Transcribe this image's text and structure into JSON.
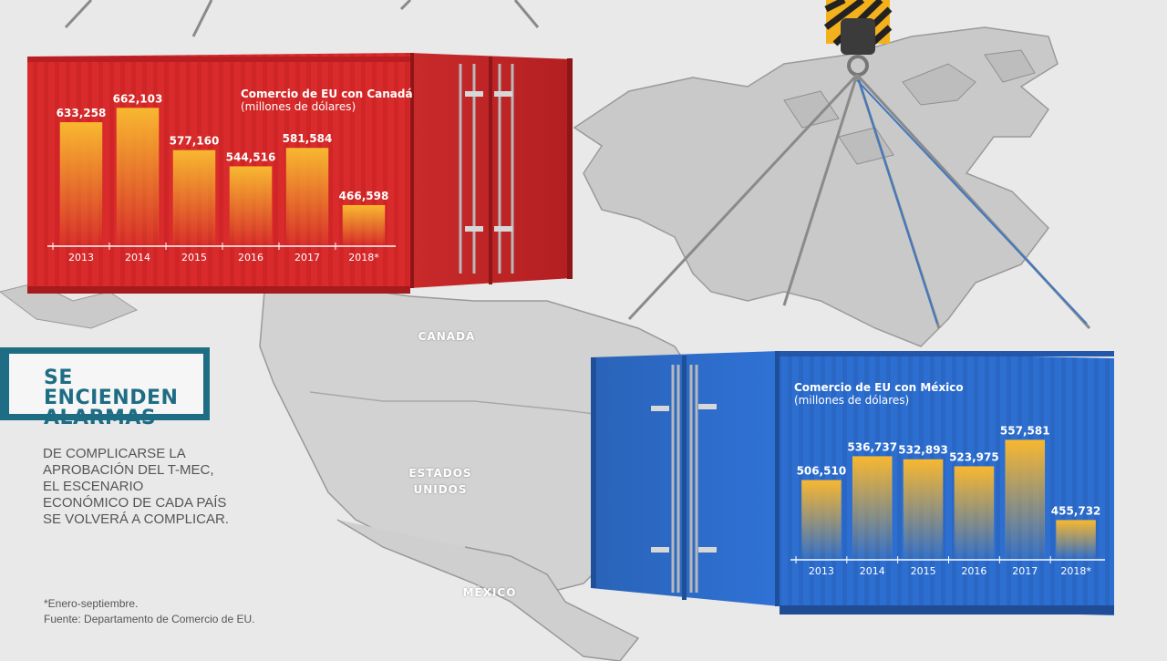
{
  "headline": "SE ENCIENDEN\nALARMAS",
  "description": "DE COMPLICARSE LA\nAPROBACIÓN DEL T-MEC,\nEL ESCENARIO\nECONÓMICO DE CADA PAÍS\nSE VOLVERÁ A COMPLICAR.",
  "footnote": "*Enero-septiembre.",
  "source": "Fuente: Departamento de Comercio de EU.",
  "map_labels": {
    "canada": "CANADÁ",
    "usa": "ESTADOS\nUNIDOS",
    "mexico": "MÉXICO"
  },
  "colors": {
    "red_container": "#d42727",
    "blue_container": "#2c6fd0",
    "bar_top": "#f7b531",
    "title_teal": "#1e6d85"
  },
  "chart_data": [
    {
      "type": "bar",
      "title": "Comercio de EU con Canadá",
      "subtitle": "(millones de dólares)",
      "categories": [
        "2013",
        "2014",
        "2015",
        "2016",
        "2017",
        "2018*"
      ],
      "values": [
        633258,
        662103,
        577160,
        544516,
        581584,
        466598
      ],
      "value_labels": [
        "633,258",
        "662,103",
        "577,160",
        "544,516",
        "581,584",
        "466,598"
      ],
      "ylim": [
        450000,
        670000
      ],
      "grid": false
    },
    {
      "type": "bar",
      "title": "Comercio de EU con México",
      "subtitle": "(millones de dólares)",
      "categories": [
        "2013",
        "2014",
        "2015",
        "2016",
        "2017",
        "2018*"
      ],
      "values": [
        506510,
        536737,
        532893,
        523975,
        557581,
        455732
      ],
      "value_labels": [
        "506,510",
        "536,737",
        "532,893",
        "523,975",
        "557,581",
        "455,732"
      ],
      "ylim": [
        440000,
        565000
      ],
      "grid": false
    }
  ]
}
